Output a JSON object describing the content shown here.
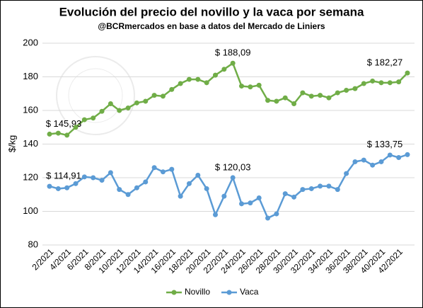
{
  "chart_data": {
    "type": "line",
    "title": "Evolución del precio del novillo y la vaca por semana",
    "subtitle": "@BCRmercados en base a datos del Mercado de Liniers",
    "y_label": "$/kg",
    "categories": [
      "2/2021",
      null,
      "4/2021",
      null,
      "6/2021",
      null,
      "8/2021",
      null,
      "10/2021",
      null,
      "12/2021",
      null,
      "14/2021",
      null,
      "16/2021",
      null,
      "18/2021",
      null,
      "20/2021",
      null,
      "22/2021",
      null,
      "24/2021",
      null,
      "26/2021",
      null,
      "28/2021",
      null,
      "30/2021",
      null,
      "32/2021",
      null,
      "34/2021",
      null,
      "36/2021",
      null,
      "38/2021",
      null,
      "40/2021",
      null,
      "42/2021",
      null
    ],
    "series": [
      {
        "name": "Novillo",
        "color": "#70ad47",
        "values": [
          145.93,
          146.5,
          145.3,
          150,
          154.5,
          155.5,
          159.5,
          164,
          160,
          161.5,
          164.5,
          165.5,
          169,
          168.5,
          172.5,
          176,
          178.5,
          178.5,
          176.5,
          181,
          184.5,
          188.09,
          174.5,
          174,
          175,
          166,
          165.5,
          167.5,
          164,
          170.5,
          168.5,
          169,
          167.5,
          170.5,
          172,
          173,
          176,
          177.5,
          176.5,
          176.5,
          177,
          182.27
        ],
        "value_labels": [
          "$ 145,93",
          null,
          null,
          null,
          null,
          null,
          null,
          null,
          null,
          null,
          null,
          null,
          null,
          null,
          null,
          null,
          null,
          null,
          null,
          null,
          null,
          "$ 188,09",
          null,
          null,
          null,
          null,
          null,
          null,
          null,
          null,
          null,
          null,
          null,
          null,
          null,
          null,
          null,
          null,
          null,
          null,
          null,
          "$ 182,27"
        ]
      },
      {
        "name": "Vaca",
        "color": "#5b9bd5",
        "values": [
          114.91,
          113.5,
          114,
          116.5,
          120.5,
          120,
          118.5,
          123,
          113,
          110,
          114,
          117.5,
          126,
          123.5,
          125,
          109,
          116.5,
          121.5,
          113.5,
          98,
          109,
          120.03,
          104.5,
          105,
          108,
          96,
          98.5,
          110.5,
          108.5,
          113,
          113.5,
          115,
          115,
          113,
          122.5,
          129.5,
          130.5,
          127.5,
          129.5,
          133.5,
          132,
          133.75
        ],
        "value_labels": [
          "$ 114,91",
          null,
          null,
          null,
          null,
          null,
          null,
          null,
          null,
          null,
          null,
          null,
          null,
          null,
          null,
          null,
          null,
          null,
          null,
          null,
          null,
          "$ 120,03",
          null,
          null,
          null,
          null,
          null,
          null,
          null,
          null,
          null,
          null,
          null,
          null,
          null,
          null,
          null,
          null,
          null,
          null,
          null,
          "$ 133,75"
        ]
      }
    ],
    "ylim": [
      80,
      200
    ],
    "yticks": [
      80,
      100,
      120,
      140,
      160,
      180,
      200
    ],
    "grid": true,
    "legend": "bottom"
  }
}
